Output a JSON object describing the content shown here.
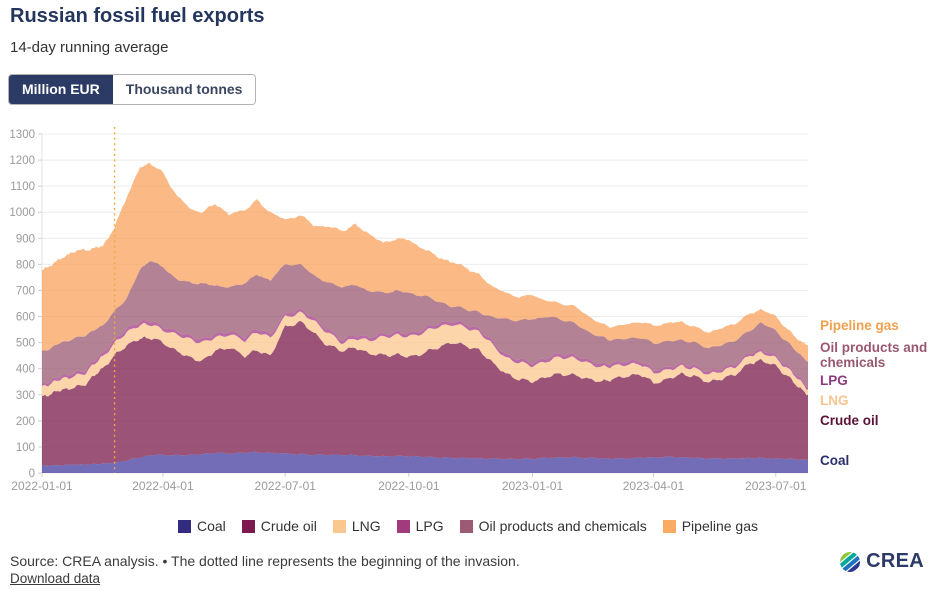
{
  "chart_data": {
    "type": "area",
    "stacked": true,
    "title": "Russian fossil fuel exports",
    "subtitle": "14-day running average",
    "unit": "Million EUR",
    "x": [
      "2022-01-01",
      "2022-01-08",
      "2022-01-15",
      "2022-01-22",
      "2022-02-01",
      "2022-02-08",
      "2022-02-15",
      "2022-02-24",
      "2022-03-05",
      "2022-03-15",
      "2022-03-22",
      "2022-04-01",
      "2022-04-12",
      "2022-04-22",
      "2022-05-01",
      "2022-05-10",
      "2022-05-20",
      "2022-06-01",
      "2022-06-10",
      "2022-06-20",
      "2022-07-01",
      "2022-07-12",
      "2022-07-22",
      "2022-08-01",
      "2022-08-12",
      "2022-08-22",
      "2022-09-01",
      "2022-09-12",
      "2022-09-22",
      "2022-10-01",
      "2022-10-12",
      "2022-10-22",
      "2022-11-01",
      "2022-11-12",
      "2022-11-22",
      "2022-12-01",
      "2022-12-12",
      "2022-12-22",
      "2023-01-01",
      "2023-01-12",
      "2023-01-22",
      "2023-02-01",
      "2023-02-12",
      "2023-02-22",
      "2023-03-01",
      "2023-03-12",
      "2023-03-22",
      "2023-04-01",
      "2023-04-12",
      "2023-04-22",
      "2023-05-01",
      "2023-05-12",
      "2023-05-22",
      "2023-06-01",
      "2023-06-12",
      "2023-06-20",
      "2023-07-01",
      "2023-07-10",
      "2023-07-18",
      "2023-07-25"
    ],
    "series": [
      {
        "name": "Coal",
        "color": "#443b9e",
        "values": [
          28,
          30,
          30,
          32,
          33,
          34,
          36,
          40,
          48,
          60,
          68,
          70,
          68,
          70,
          72,
          78,
          75,
          78,
          80,
          76,
          75,
          72,
          70,
          70,
          70,
          68,
          66,
          64,
          65,
          65,
          62,
          60,
          58,
          58,
          56,
          55,
          54,
          54,
          55,
          58,
          60,
          60,
          58,
          56,
          55,
          56,
          58,
          60,
          62,
          60,
          58,
          56,
          55,
          56,
          57,
          57,
          56,
          54,
          52,
          50
        ]
      },
      {
        "name": "Crude oil",
        "color": "#7a1a4a",
        "values": [
          262,
          275,
          288,
          293,
          302,
          336,
          364,
          410,
          442,
          455,
          452,
          430,
          397,
          370,
          358,
          392,
          405,
          372,
          390,
          374,
          485,
          508,
          470,
          420,
          400,
          412,
          394,
          386,
          390,
          379,
          398,
          420,
          442,
          432,
          414,
          375,
          326,
          306,
          295,
          312,
          320,
          315,
          302,
          294,
          305,
          314,
          322,
          285,
          298,
          320,
          312,
          294,
          305,
          324,
          363,
          376,
          354,
          316,
          278,
          250
        ]
      },
      {
        "name": "LNG",
        "color": "#fbc88e",
        "values": [
          38,
          40,
          42,
          43,
          43,
          45,
          45,
          47,
          50,
          52,
          52,
          48,
          65,
          70,
          70,
          50,
          50,
          60,
          70,
          70,
          38,
          35,
          45,
          50,
          30,
          35,
          50,
          70,
          75,
          77,
          80,
          80,
          70,
          70,
          70,
          70,
          60,
          65,
          60,
          60,
          65,
          65,
          60,
          55,
          50,
          45,
          40,
          40,
          35,
          30,
          30,
          30,
          30,
          30,
          30,
          31,
          30,
          30,
          30,
          20
        ]
      },
      {
        "name": "LPG",
        "color": "#a33a84",
        "values": [
          10,
          11,
          11,
          12,
          12,
          13,
          13,
          13,
          13,
          13,
          13,
          13,
          13,
          13,
          13,
          13,
          13,
          13,
          13,
          13,
          12,
          12,
          12,
          12,
          12,
          12,
          12,
          12,
          12,
          12,
          12,
          12,
          12,
          12,
          12,
          12,
          12,
          12,
          12,
          12,
          12,
          12,
          12,
          12,
          12,
          12,
          12,
          10,
          10,
          10,
          10,
          10,
          10,
          10,
          10,
          10,
          10,
          10,
          10,
          10
        ]
      },
      {
        "name": "Oil products and chemicals",
        "color": "#9a5870",
        "values": [
          127,
          124,
          129,
          130,
          135,
          117,
          107,
          110,
          117,
          200,
          230,
          229,
          197,
          207,
          212,
          187,
          167,
          207,
          207,
          207,
          190,
          173,
          163,
          178,
          203,
          193,
          178,
          158,
          158,
          156,
          128,
          88,
          58,
          58,
          63,
          88,
          138,
          148,
          168,
          158,
          133,
          123,
          108,
          103,
          88,
          88,
          88,
          103,
          100,
          90,
          90,
          90,
          90,
          90,
          85,
          104,
          95,
          90,
          90,
          97
        ]
      },
      {
        "name": "Pipeline gas",
        "color": "#f8a25c",
        "values": [
          310,
          320,
          320,
          335,
          330,
          315,
          305,
          320,
          390,
          390,
          375,
          360,
          320,
          280,
          275,
          315,
          280,
          280,
          285,
          260,
          170,
          190,
          190,
          215,
          215,
          230,
          220,
          190,
          200,
          203,
          180,
          170,
          170,
          160,
          145,
          120,
          100,
          90,
          92,
          60,
          60,
          65,
          60,
          50,
          50,
          55,
          60,
          67,
          70,
          70,
          60,
          60,
          65,
          65,
          65,
          50,
          55,
          50,
          50,
          63
        ]
      }
    ],
    "ylim": [
      0,
      1300
    ],
    "ytick_step": 100,
    "xticks": [
      "2022-01-01",
      "2022-04-01",
      "2022-07-01",
      "2022-10-01",
      "2023-01-01",
      "2023-04-01",
      "2023-07-01"
    ],
    "grid": "horizontal",
    "legend_position": "bottom",
    "legend": [
      {
        "label": "Coal",
        "color": "#332b80"
      },
      {
        "label": "Crude oil",
        "color": "#7c1a4d"
      },
      {
        "label": "LNG",
        "color": "#fac88f"
      },
      {
        "label": "LPG",
        "color": "#a23a80"
      },
      {
        "label": "Oil products and chemicals",
        "color": "#9c5a74"
      },
      {
        "label": "Pipeline gas",
        "color": "#f9ab63"
      }
    ],
    "right_labels": [
      {
        "text": "Pipeline gas",
        "color": "#f0a04e"
      },
      {
        "text": "Oil products and chemicals",
        "color": "#9a5870"
      },
      {
        "text": "LPG",
        "color": "#8d3a7e"
      },
      {
        "text": "LNG",
        "color": "#f7c690"
      },
      {
        "text": "Crude oil",
        "color": "#5c1238"
      },
      {
        "text": "Coal",
        "color": "#2b2f6e"
      }
    ],
    "annotation": {
      "type": "vline",
      "date": "2022-02-24",
      "style": "dotted",
      "color": "#f5a63c",
      "meaning": "beginning of the invasion"
    }
  },
  "unit_toggle": {
    "options": [
      "Million EUR",
      "Thousand tonnes"
    ],
    "active": "Million EUR"
  },
  "footer": {
    "source": "Source: CREA analysis. • The dotted line represents the beginning of the invasion.",
    "download_label": "Download data",
    "logo_text": "CREA"
  }
}
